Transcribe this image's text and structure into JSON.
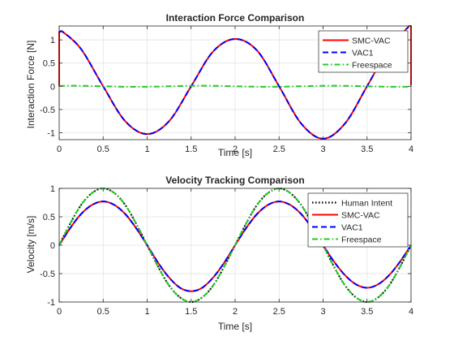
{
  "chart_data": [
    {
      "type": "line",
      "title": "Interaction Force Comparison",
      "xlabel": "Time [s]",
      "ylabel": "Interaction Force [N]",
      "xlim": [
        0,
        4
      ],
      "ylim": [
        -1.15,
        1.3
      ],
      "xticks": [
        0,
        0.5,
        1,
        1.5,
        2,
        2.5,
        3,
        3.5,
        4
      ],
      "xtick_labels": [
        "0",
        "0.5",
        "1",
        "1.5",
        "2",
        "2.5",
        "3",
        "3.5",
        "4"
      ],
      "yticks": [
        -1,
        -0.5,
        0,
        0.5,
        1
      ],
      "ytick_labels": [
        "-1",
        "-0.5",
        "0",
        "0.5",
        "1"
      ],
      "grid": true,
      "legend_position": "top-right",
      "series": [
        {
          "name": "SMC-VAC",
          "color": "#ff0000",
          "style": "solid",
          "x": [
            0,
            0,
            0.01,
            0.05,
            0.25,
            0.5,
            0.75,
            1,
            1.25,
            1.5,
            1.75,
            2,
            2.25,
            2.5,
            2.75,
            3,
            3.25,
            3.5,
            3.75,
            3.97,
            3.98,
            4,
            4
          ],
          "y": [
            0,
            1.17,
            1.17,
            1.16,
            0.8,
            0,
            -0.75,
            -1.03,
            -0.75,
            0,
            0.75,
            1.02,
            0.77,
            0,
            -0.8,
            -1.13,
            -0.8,
            0,
            0.82,
            1.28,
            1.3,
            1.3,
            0.02
          ]
        },
        {
          "name": "VAC1",
          "color": "#0000ff",
          "style": "dashed",
          "x": [
            0,
            0.05,
            0.25,
            0.5,
            0.75,
            1,
            1.25,
            1.5,
            1.75,
            2,
            2.25,
            2.5,
            2.75,
            3,
            3.25,
            3.5,
            3.75,
            3.97
          ],
          "y": [
            1.17,
            1.16,
            0.8,
            0,
            -0.75,
            -1.03,
            -0.75,
            0,
            0.75,
            1.02,
            0.77,
            0,
            -0.8,
            -1.13,
            -0.8,
            0,
            0.82,
            1.28
          ]
        },
        {
          "name": "Freespace",
          "color": "#22cc22",
          "style": "dashdot",
          "x": [
            0,
            0.25,
            0.5,
            0.75,
            1,
            1.25,
            1.5,
            1.75,
            2,
            2.25,
            2.5,
            2.75,
            3,
            3.25,
            3.5,
            3.75,
            4
          ],
          "y": [
            0.01,
            0.01,
            0.0,
            -0.01,
            -0.01,
            0.0,
            0.01,
            0.01,
            0.0,
            -0.01,
            -0.01,
            0.0,
            0.01,
            0.01,
            0.0,
            -0.01,
            -0.01
          ]
        }
      ]
    },
    {
      "type": "line",
      "title": "Velocity Tracking Comparison",
      "xlabel": "Time [s]",
      "ylabel": "Velocity [m/s]",
      "xlim": [
        0,
        4
      ],
      "ylim": [
        -1,
        1
      ],
      "xticks": [
        0,
        0.5,
        1,
        1.5,
        2,
        2.5,
        3,
        3.5,
        4
      ],
      "xtick_labels": [
        "0",
        "0.5",
        "1",
        "1.5",
        "2",
        "2.5",
        "3",
        "3.5",
        "4"
      ],
      "yticks": [
        -1,
        -0.5,
        0,
        0.5,
        1
      ],
      "ytick_labels": [
        "-1",
        "-0.5",
        "0",
        "0.5",
        "1"
      ],
      "grid": true,
      "legend_position": "top-right",
      "series": [
        {
          "name": "Human Intent",
          "color": "#000000",
          "style": "dotted",
          "x": [
            0,
            0.125,
            0.25,
            0.375,
            0.5,
            0.625,
            0.75,
            0.875,
            1,
            1.125,
            1.25,
            1.375,
            1.5,
            1.625,
            1.75,
            1.875,
            2,
            2.125,
            2.25,
            2.375,
            2.5,
            2.625,
            2.75,
            2.875,
            3,
            3.125,
            3.25,
            3.375,
            3.5,
            3.625,
            3.75,
            3.875,
            4
          ],
          "y": [
            0,
            0.38,
            0.71,
            0.92,
            1,
            0.92,
            0.71,
            0.38,
            0,
            -0.38,
            -0.71,
            -0.92,
            -1,
            -0.92,
            -0.71,
            -0.38,
            0,
            0.38,
            0.71,
            0.92,
            1,
            0.92,
            0.71,
            0.38,
            0,
            -0.38,
            -0.71,
            -0.92,
            -1,
            -0.92,
            -0.71,
            -0.38,
            0
          ]
        },
        {
          "name": "SMC-VAC",
          "color": "#ff0000",
          "style": "solid",
          "x": [
            0,
            0.125,
            0.25,
            0.375,
            0.5,
            0.625,
            0.75,
            0.875,
            1,
            1.125,
            1.25,
            1.375,
            1.5,
            1.625,
            1.75,
            1.875,
            2,
            2.125,
            2.25,
            2.375,
            2.5,
            2.625,
            2.75,
            2.875,
            3,
            3.125,
            3.25,
            3.375,
            3.5,
            3.625,
            3.75,
            3.875,
            4
          ],
          "y": [
            0,
            0.3,
            0.55,
            0.71,
            0.77,
            0.71,
            0.55,
            0.3,
            0,
            -0.31,
            -0.57,
            -0.75,
            -0.81,
            -0.75,
            -0.57,
            -0.31,
            0,
            0.3,
            0.55,
            0.71,
            0.77,
            0.71,
            0.55,
            0.3,
            0,
            -0.29,
            -0.53,
            -0.69,
            -0.75,
            -0.69,
            -0.53,
            -0.29,
            0
          ]
        },
        {
          "name": "VAC1",
          "color": "#0000ff",
          "style": "dashed",
          "x": [
            0,
            0.125,
            0.25,
            0.375,
            0.5,
            0.625,
            0.75,
            0.875,
            1,
            1.125,
            1.25,
            1.375,
            1.5,
            1.625,
            1.75,
            1.875,
            2,
            2.125,
            2.25,
            2.375,
            2.5,
            2.625,
            2.75,
            2.875,
            3,
            3.125,
            3.25,
            3.375,
            3.5,
            3.625,
            3.75,
            3.875,
            4
          ],
          "y": [
            0,
            0.3,
            0.55,
            0.71,
            0.77,
            0.71,
            0.55,
            0.3,
            0,
            -0.31,
            -0.57,
            -0.75,
            -0.81,
            -0.75,
            -0.57,
            -0.31,
            0,
            0.3,
            0.55,
            0.71,
            0.77,
            0.71,
            0.55,
            0.3,
            0,
            -0.29,
            -0.53,
            -0.69,
            -0.75,
            -0.69,
            -0.53,
            -0.29,
            0
          ]
        },
        {
          "name": "Freespace",
          "color": "#22cc22",
          "style": "dashdot",
          "x": [
            0,
            0.125,
            0.25,
            0.375,
            0.5,
            0.625,
            0.75,
            0.875,
            1,
            1.125,
            1.25,
            1.375,
            1.5,
            1.625,
            1.75,
            1.875,
            2,
            2.125,
            2.25,
            2.375,
            2.5,
            2.625,
            2.75,
            2.875,
            3,
            3.125,
            3.25,
            3.375,
            3.5,
            3.625,
            3.75,
            3.875,
            4
          ],
          "y": [
            0,
            0.38,
            0.71,
            0.92,
            1,
            0.92,
            0.71,
            0.38,
            0,
            -0.38,
            -0.71,
            -0.92,
            -1,
            -0.92,
            -0.71,
            -0.38,
            0,
            0.38,
            0.71,
            0.92,
            1,
            0.92,
            0.71,
            0.38,
            0,
            -0.38,
            -0.71,
            -0.92,
            -1,
            -0.92,
            -0.71,
            -0.38,
            0
          ]
        }
      ]
    }
  ]
}
